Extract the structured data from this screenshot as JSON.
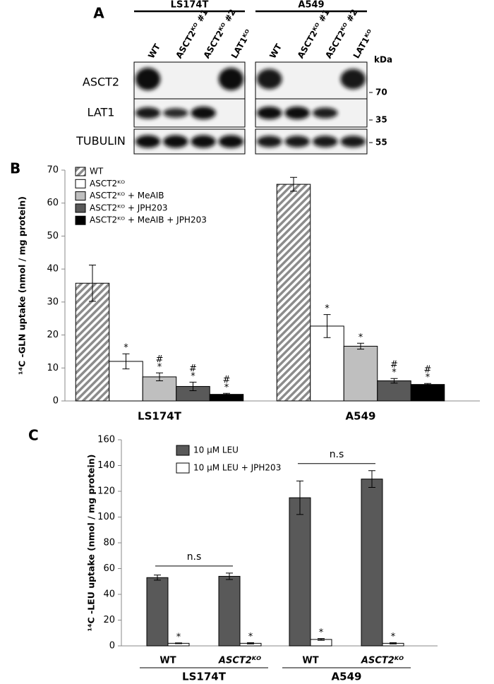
{
  "blot": {
    "panel": "A",
    "groups": [
      {
        "label": "LS174T",
        "lanes": [
          "WT",
          "ASCT2ᴷᴼ #1",
          "ASCT2ᴷᴼ #2",
          "LAT1ᴷᴼ"
        ]
      },
      {
        "label": "A549",
        "lanes": [
          "WT",
          "ASCT2ᴷᴼ #1",
          "ASCT2ᴷᴼ #2",
          "LAT1ᴷᴼ"
        ]
      }
    ],
    "rows": [
      "ASCT2",
      "LAT1",
      "TUBULIN"
    ],
    "kda_label": "kDa",
    "markers": [
      70,
      35,
      55
    ]
  },
  "chart_data": [
    {
      "type": "bar",
      "panel": "B",
      "ylabel": "¹⁴C -GLN uptake  (nmol / mg protein)",
      "categories": [
        "LS174T",
        "A549"
      ],
      "ylim": [
        0,
        70
      ],
      "yticks": [
        0,
        10,
        20,
        30,
        40,
        50,
        60,
        70
      ],
      "series": [
        {
          "name": "WT",
          "color": "#8c8c8c",
          "hatch": true,
          "values": [
            35.7,
            65.7
          ],
          "errors": [
            5.5,
            2.1
          ]
        },
        {
          "name": "ASCT2ᴷᴼ",
          "color": "#ffffff",
          "values": [
            12.0,
            22.7
          ],
          "errors": [
            2.3,
            3.5
          ]
        },
        {
          "name": "ASCT2ᴷᴼ + MeAIB",
          "color": "#bfbfbf",
          "values": [
            7.3,
            16.6
          ],
          "errors": [
            1.2,
            0.9
          ]
        },
        {
          "name": "ASCT2ᴷᴼ + JPH203",
          "color": "#595959",
          "values": [
            4.4,
            6.1
          ],
          "errors": [
            1.3,
            0.7
          ]
        },
        {
          "name": "ASCT2ᴷᴼ + MeAIB + JPH203",
          "color": "#000000",
          "values": [
            2.0,
            5.0
          ],
          "errors": [
            0.3,
            0.3
          ]
        }
      ],
      "annotations": [
        {
          "series": 1,
          "category": 0,
          "text": "*"
        },
        {
          "series": 2,
          "category": 0,
          "text": "*"
        },
        {
          "series": 2,
          "category": 0,
          "text": "#"
        },
        {
          "series": 3,
          "category": 0,
          "text": "*"
        },
        {
          "series": 3,
          "category": 0,
          "text": "#"
        },
        {
          "series": 4,
          "category": 0,
          "text": "*"
        },
        {
          "series": 4,
          "category": 0,
          "text": "#"
        },
        {
          "series": 1,
          "category": 1,
          "text": "*"
        },
        {
          "series": 2,
          "category": 1,
          "text": "*"
        },
        {
          "series": 3,
          "category": 1,
          "text": "*"
        },
        {
          "series": 3,
          "category": 1,
          "text": "#"
        },
        {
          "series": 4,
          "category": 1,
          "text": "*"
        },
        {
          "series": 4,
          "category": 1,
          "text": "#"
        }
      ]
    },
    {
      "type": "bar",
      "panel": "C",
      "ylabel": "¹⁴C -LEU uptake  (nmol / mg protein)",
      "categories": [
        "WT",
        "ASCT2ᴷᴼ",
        "WT",
        "ASCT2ᴷᴼ"
      ],
      "groups": [
        "LS174T",
        "A549"
      ],
      "ylim": [
        0,
        160
      ],
      "yticks": [
        0,
        20,
        40,
        60,
        80,
        100,
        120,
        140,
        160
      ],
      "series": [
        {
          "name": "10 μM LEU",
          "color": "#595959",
          "values": [
            53,
            54,
            115,
            129.5
          ],
          "errors": [
            2,
            2.5,
            13,
            6.5
          ]
        },
        {
          "name": "10 μM LEU + JPH203",
          "color": "#ffffff",
          "values": [
            2,
            2,
            5,
            2
          ],
          "errors": [
            0.3,
            0.5,
            0.7,
            0.5
          ]
        }
      ],
      "annotations": [
        {
          "series": 1,
          "category": 0,
          "text": "*"
        },
        {
          "series": 1,
          "category": 1,
          "text": "*"
        },
        {
          "series": 1,
          "category": 2,
          "text": "*"
        },
        {
          "series": 1,
          "category": 3,
          "text": "*"
        }
      ],
      "brackets": [
        {
          "categories": [
            0,
            1
          ],
          "text": "n.s"
        },
        {
          "categories": [
            2,
            3
          ],
          "text": "n.s"
        }
      ]
    }
  ]
}
